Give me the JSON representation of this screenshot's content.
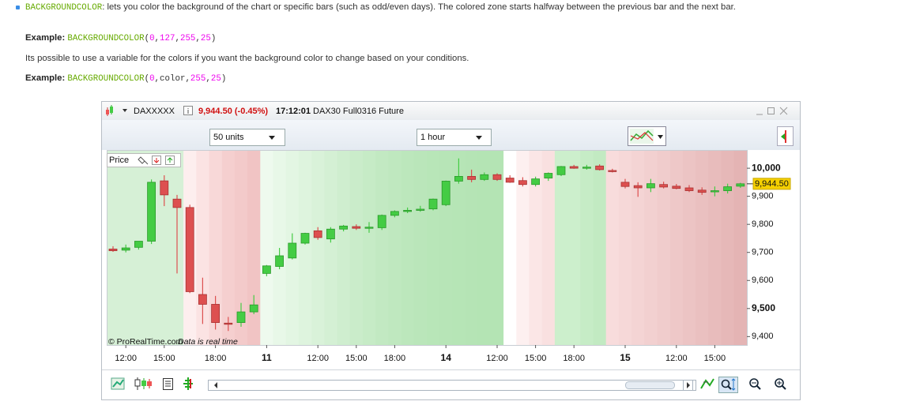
{
  "doc": {
    "bullet": {
      "keyword": "BACKGROUNDCOLOR",
      "text": ": lets you color the background of the chart or specific bars (such as odd/even days). The colored zone starts halfway between the previous bar and the next bar."
    },
    "examples": [
      {
        "label": "Example:",
        "code": {
          "keyword": "BACKGROUNDCOLOR",
          "open": "(",
          "args": [
            "0",
            "127",
            "255",
            "25"
          ],
          "separator": ",",
          "close": ")"
        }
      },
      {
        "label": "Example:",
        "code": {
          "keyword": "BACKGROUNDCOLOR",
          "open": "(",
          "args": [
            "0",
            "color",
            "255",
            "25"
          ],
          "separator": ",",
          "close": ")"
        }
      }
    ],
    "note": "Its possible to use a variable for the colors if you want the background color to change based on your conditions."
  },
  "window": {
    "symbol": "DAXXXXX",
    "price_change": "9,944.50 (-0.45%)",
    "time": "17:12:01",
    "description": "DAX30 Full0316 Future",
    "units": "50 units",
    "timeframe": "1 hour",
    "panel_label": "Price",
    "watermark": "© ProRealTime.com",
    "realtime_note": "Data is real time"
  },
  "chart_data": {
    "type": "candlestick",
    "categories": [
      null,
      "12:00",
      null,
      null,
      "15:00",
      null,
      null,
      null,
      "18:00",
      null,
      null,
      null,
      "11",
      null,
      null,
      null,
      "12:00",
      null,
      null,
      "15:00",
      null,
      null,
      "18:00",
      null,
      null,
      null,
      "14",
      null,
      null,
      null,
      "12:00",
      null,
      null,
      "15:00",
      null,
      null,
      "18:00",
      null,
      null,
      null,
      "15",
      null,
      null,
      null,
      "12:00",
      null,
      null,
      "15:00",
      null,
      null
    ],
    "open": [
      9712,
      9708,
      9718,
      9740,
      9955,
      9890,
      9860,
      9550,
      9515,
      9448,
      9450,
      9488,
      9625,
      9650,
      9680,
      9733,
      9777,
      9748,
      9783,
      9792,
      9789,
      9788,
      9832,
      9848,
      9852,
      9855,
      9870,
      9954,
      9971,
      9960,
      9977,
      9965,
      9956,
      9942,
      9965,
      9977,
      10006,
      10000,
      10008,
      9992,
      9950,
      9938,
      9930,
      9942,
      9936,
      9930,
      9922,
      9918,
      9920,
      9936
    ],
    "high": [
      9722,
      9728,
      9740,
      9960,
      9975,
      9905,
      9870,
      9610,
      9545,
      9470,
      9520,
      9548,
      9655,
      9716,
      9768,
      9770,
      9790,
      9790,
      9798,
      9800,
      9808,
      9835,
      9850,
      9860,
      9866,
      9892,
      9956,
      10035,
      9995,
      9985,
      9982,
      9975,
      9968,
      9970,
      9985,
      10008,
      10012,
      10012,
      10014,
      9998,
      9962,
      9950,
      9962,
      9952,
      9944,
      9940,
      9932,
      9935,
      9945,
      9948
    ],
    "low": [
      9702,
      9700,
      9710,
      9730,
      9865,
      9625,
      9555,
      9445,
      9425,
      9420,
      9435,
      9480,
      9615,
      9640,
      9675,
      9728,
      9745,
      9735,
      9775,
      9780,
      9770,
      9780,
      9825,
      9840,
      9845,
      9850,
      9865,
      9945,
      9950,
      9955,
      9955,
      9948,
      9935,
      9935,
      9955,
      9972,
      9998,
      9995,
      9992,
      9985,
      9928,
      9898,
      9915,
      9928,
      9925,
      9915,
      9905,
      9900,
      9910,
      9930
    ],
    "close": [
      9706,
      9716,
      9740,
      9950,
      9905,
      9860,
      9560,
      9515,
      9450,
      9446,
      9488,
      9513,
      9652,
      9688,
      9733,
      9768,
      9753,
      9783,
      9794,
      9786,
      9790,
      9832,
      9846,
      9850,
      9854,
      9890,
      9954,
      9971,
      9960,
      9977,
      9960,
      9950,
      9942,
      9962,
      9982,
      10006,
      10000,
      10004,
      9995,
      9988,
      9935,
      9930,
      9945,
      9933,
      9928,
      9920,
      9914,
      9920,
      9934,
      9944.5
    ],
    "up_color": "#44cc44",
    "down_color": "#dd5050",
    "background_colors": [
      "#d6f0d6",
      "#d6f0d6",
      "#d6f0d6",
      "#d6f0d6",
      "#d6f0d6",
      "#d6f0d6",
      "#fdeeee",
      "#fbe3e3",
      "#f8d8d8",
      "#f5cfcf",
      "#f3caca",
      "#f1c4c4",
      "#eefaee",
      "#e8f8e8",
      "#e3f6e3",
      "#def4de",
      "#d9f2d9",
      "#d4f0d4",
      "#cfeecf",
      "#caecca",
      "#c6ebc6",
      "#c2e9c2",
      "#bfe8bf",
      "#bce7bc",
      "#bae6ba",
      "#b8e6b8",
      "#b7e5b7",
      "#b6e5b6",
      "#b5e4b5",
      "#b4e4b4",
      "#b4e4b4",
      "#ffffff",
      "#fdf0f0",
      "#fbe6e6",
      "#f9e0e0",
      "#ccefcc",
      "#ccefcc",
      "#c6ecc6",
      "#c2eac2",
      "#f8dcdc",
      "#f6d8d8",
      "#f4d4d4",
      "#f2d0d0",
      "#f0cccc",
      "#eec8c8",
      "#ecc4c4",
      "#eac0c0",
      "#e8bcbc",
      "#e6b8b8",
      "#e4b4b4"
    ],
    "ylim": [
      9370,
      10065
    ],
    "yticks": [
      {
        "value": 9400,
        "label": "9,400"
      },
      {
        "value": 9500,
        "label": "9,500"
      },
      {
        "value": 9600,
        "label": "9,600"
      },
      {
        "value": 9700,
        "label": "9,700"
      },
      {
        "value": 9800,
        "label": "9,800"
      },
      {
        "value": 9900,
        "label": "9,900"
      },
      {
        "value": 10000,
        "label": "10,000"
      }
    ],
    "grid": false,
    "last_price": {
      "value": 9944.5,
      "label": "9,944.50"
    }
  }
}
